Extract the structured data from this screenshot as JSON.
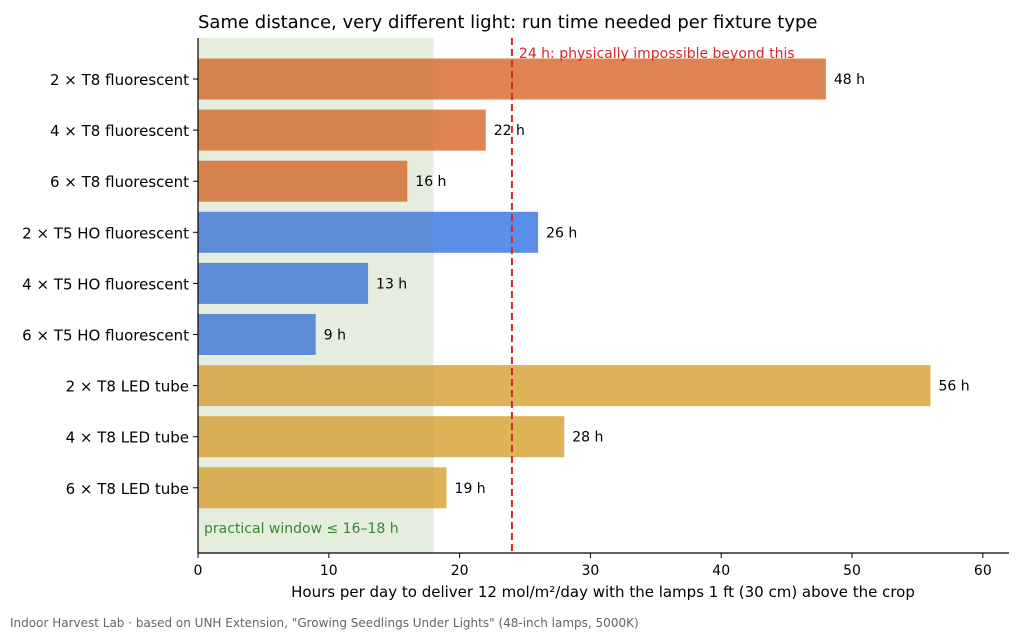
{
  "chart_data": {
    "type": "bar",
    "orientation": "horizontal",
    "title": "Same distance, very different light: run time needed per fixture type",
    "xlabel": "Hours per day to deliver 12 mol/m²/day with the lamps 1 ft (30 cm) above the crop",
    "ylabel": "",
    "xlim": [
      0,
      62
    ],
    "xticks": [
      0,
      10,
      20,
      30,
      40,
      50,
      60
    ],
    "grid": false,
    "categories": [
      "2 × T8 fluorescent",
      "4 × T8 fluorescent",
      "6 × T8 fluorescent",
      "2 × T5 HO fluorescent",
      "4 × T5 HO fluorescent",
      "6 × T5 HO fluorescent",
      "2 × T8 LED tube",
      "4 × T8 LED tube",
      "6 × T8 LED tube"
    ],
    "values": [
      48,
      22,
      16,
      26,
      13,
      9,
      56,
      28,
      19
    ],
    "value_labels": [
      "48 h",
      "22 h",
      "16 h",
      "26 h",
      "13 h",
      "9 h",
      "56 h",
      "28 h",
      "19 h"
    ],
    "groups": [
      {
        "members": [
          0,
          1,
          2
        ],
        "color": "#dd8452"
      },
      {
        "members": [
          3,
          4,
          5
        ],
        "color": "#5b8ee6"
      },
      {
        "members": [
          6,
          7,
          8
        ],
        "color": "#deb257"
      }
    ],
    "annotations": {
      "shaded_region": {
        "from": 0,
        "to": 18,
        "color": "#e6f4e6",
        "label": "practical window ≤ 16–18 h",
        "label_color": "#2e8b2e"
      },
      "reference_line": {
        "x": 24,
        "color": "#d62728",
        "style": "dashed",
        "label": "24 h: physically impossible beyond this"
      }
    }
  },
  "footer": "Indoor Harvest Lab · based on UNH Extension, \"Growing Seedlings Under Lights\" (48-inch lamps, 5000K)"
}
